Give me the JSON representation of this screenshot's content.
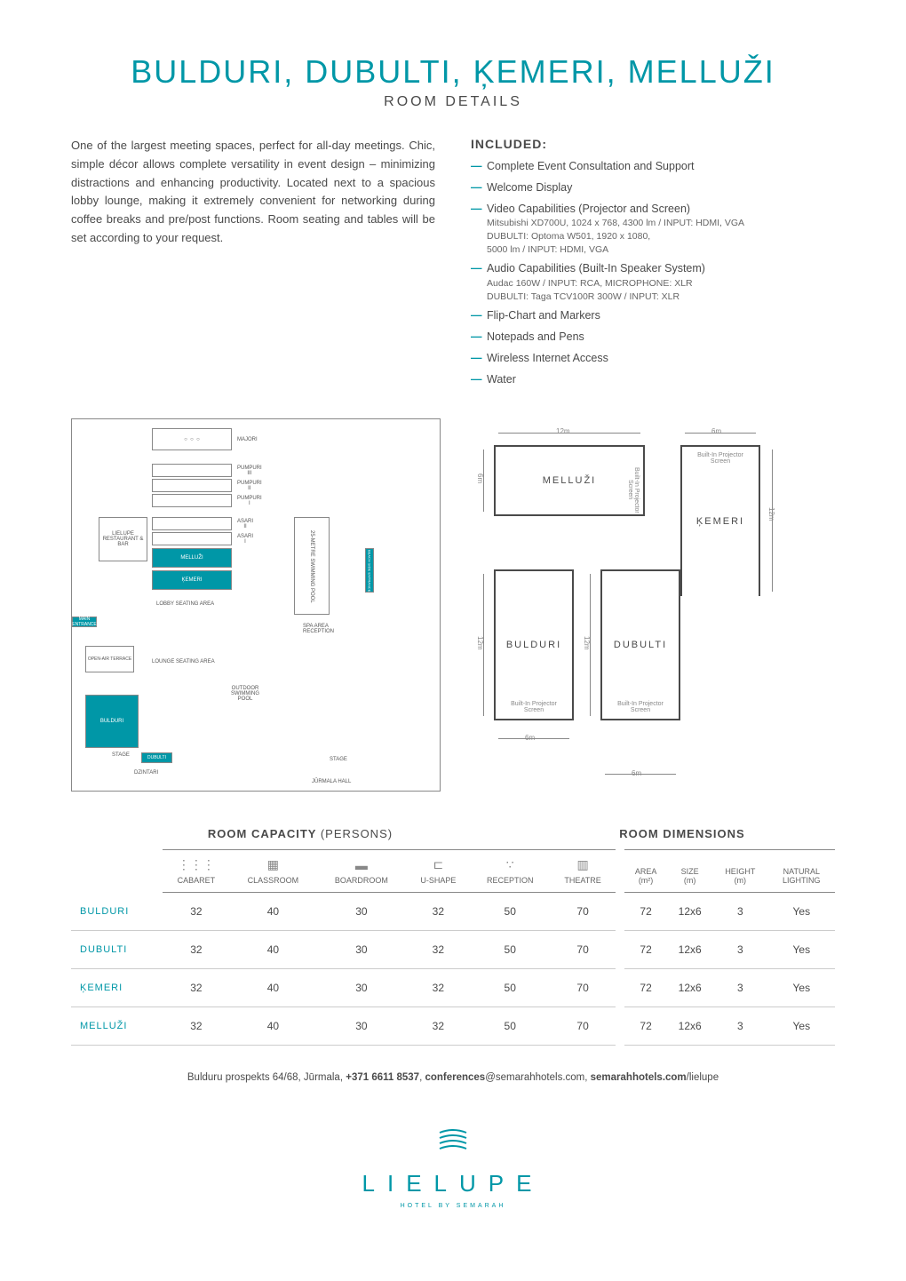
{
  "title": "BULDURI, DUBULTI, ĶEMERI, MELLUŽI",
  "subtitle": "ROOM DETAILS",
  "description": "One of the largest meeting spaces, perfect for all-day meetings. Chic, simple décor allows complete versatility in event design – minimizing distractions and enhancing productivity. Located next to a spacious lobby lounge, making it extremely convenient for networking during coffee breaks and pre/post functions. Room seating and tables will be set according to your request.",
  "included_title": "INCLUDED:",
  "included": [
    {
      "label": "Complete Event Consultation and Support",
      "sub": ""
    },
    {
      "label": "Welcome Display",
      "sub": ""
    },
    {
      "label": "Video Capabilities (Projector and Screen)",
      "sub": "Mitsubishi XD700U, 1024 x 768, 4300 lm / INPUT: HDMI, VGA\nDUBULTI: Optoma W501, 1920 x 1080,\n5000 lm / INPUT: HDMI, VGA"
    },
    {
      "label": "Audio Capabilities (Built-In Speaker System)",
      "sub": "Audac 160W / INPUT: RCA, MICROPHONE: XLR\nDUBULTI: Taga TCV100R 300W / INPUT: XLR"
    },
    {
      "label": "Flip-Chart and Markers",
      "sub": ""
    },
    {
      "label": "Notepads and Pens",
      "sub": ""
    },
    {
      "label": "Wireless Internet Access",
      "sub": ""
    },
    {
      "label": "Water",
      "sub": ""
    }
  ],
  "floorplan": {
    "labels": {
      "majori": "MAJORI",
      "pumpuri3": "PUMPURI III",
      "pumpuri2": "PUMPURI II",
      "pumpuri1": "PUMPURI I",
      "asari2": "ASARI II",
      "asari1": "ASARI I",
      "melluzi": "MELLUŽI",
      "kemeri": "ĶEMERI",
      "restaurant": "LIELUPE RESTAURANT & BAR",
      "lobby": "LOBBY SEATING AREA",
      "main_entrance": "MAIN ENTRANCE",
      "lounge": "LOUNGE SEATING AREA",
      "terrace": "OPEN-AIR TERRACE",
      "bulduri": "BULDURI",
      "dubulti": "DUBULTI",
      "dzintari": "DZINTARI",
      "pool": "OUTDOOR SWIMMING POOL",
      "spa": "SPA AREA RECEPTION",
      "stage": "STAGE",
      "stage2": "STAGE",
      "jurmala": "JŪRMALA HALL",
      "swimming": "25-METRE SWIMMING POOL",
      "beach_entrance": "BEACH SIDE ENTRANCE"
    }
  },
  "room_dims": {
    "melluzi": {
      "name": "MELLUŽI",
      "w": "12m",
      "h": "6m"
    },
    "kemeri": {
      "name": "ĶEMERI",
      "w": "6m",
      "h": "12m"
    },
    "bulduri": {
      "name": "BULDURI",
      "w": "6m",
      "h": "12m"
    },
    "dubulti": {
      "name": "DUBULTI",
      "w": "6m",
      "h": "12m"
    },
    "screen": "Built-In\nProjector Screen"
  },
  "capacity_title_left_a": "ROOM CAPACITY ",
  "capacity_title_left_b": "(PERSONS)",
  "capacity_title_right": "ROOM DIMENSIONS",
  "columns_cap": [
    "CABARET",
    "CLASSROOM",
    "BOARDROOM",
    "U-SHAPE",
    "RECEPTION",
    "THEATRE"
  ],
  "columns_dim": [
    "AREA (m²)",
    "SIZE (m)",
    "HEIGHT (m)",
    "NATURAL LIGHTING"
  ],
  "icons": [
    "⋮⋮⋮",
    "▦",
    "▬",
    "⊏",
    "∵",
    "▥"
  ],
  "rows": [
    {
      "name": "BULDURI",
      "cap": [
        "32",
        "40",
        "30",
        "32",
        "50",
        "70"
      ],
      "dim": [
        "72",
        "12x6",
        "3",
        "Yes"
      ]
    },
    {
      "name": "DUBULTI",
      "cap": [
        "32",
        "40",
        "30",
        "32",
        "50",
        "70"
      ],
      "dim": [
        "72",
        "12x6",
        "3",
        "Yes"
      ]
    },
    {
      "name": "ĶEMERI",
      "cap": [
        "32",
        "40",
        "30",
        "32",
        "50",
        "70"
      ],
      "dim": [
        "72",
        "12x6",
        "3",
        "Yes"
      ]
    },
    {
      "name": "MELLUŽI",
      "cap": [
        "32",
        "40",
        "30",
        "32",
        "50",
        "70"
      ],
      "dim": [
        "72",
        "12x6",
        "3",
        "Yes"
      ]
    }
  ],
  "footer": {
    "address": "Bulduru prospekts 64/68, Jūrmala, ",
    "phone": "+371 6611 8537",
    "email_a": "conferences",
    "email_b": "@semarahhotels.com, ",
    "site_a": "semarahhotels.com",
    "site_b": "/lielupe"
  },
  "logo": {
    "text": "LIELUPE",
    "sub": "HOTEL BY SEMARAH"
  },
  "colors": {
    "teal": "#0097a7",
    "text": "#4a4a4a",
    "grey": "#888888"
  }
}
